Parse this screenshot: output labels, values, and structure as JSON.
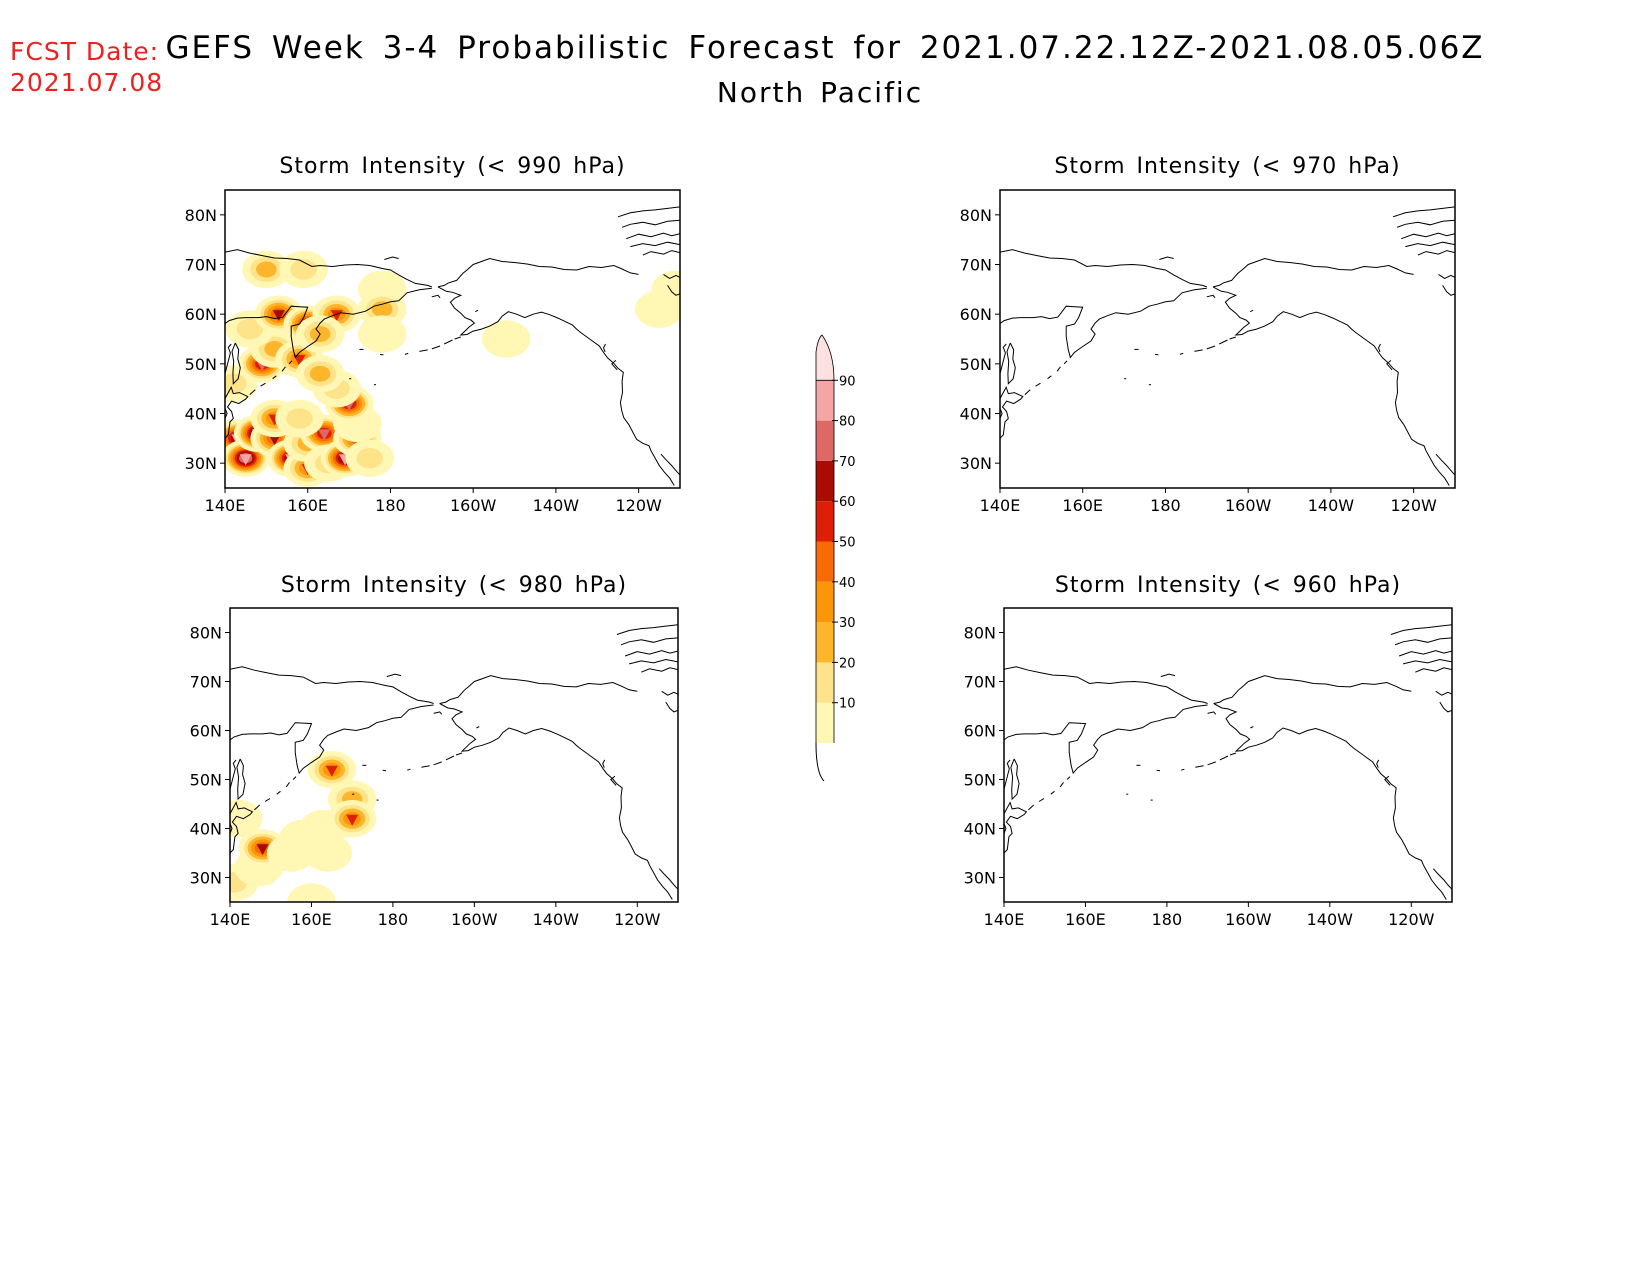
{
  "header": {
    "fcst_label": "FCST Date:",
    "fcst_date": "2021.07.08",
    "title": "GEFS Week 3-4 Probabilistic Forecast for 2021.07.22.12Z-2021.08.05.06Z",
    "subtitle": "North Pacific"
  },
  "panels": [
    {
      "title": "Storm Intensity (< 990 hPa)"
    },
    {
      "title": "Storm Intensity (< 970 hPa)"
    },
    {
      "title": "Storm Intensity (< 980 hPa)"
    },
    {
      "title": "Storm Intensity (< 960 hPa)"
    }
  ],
  "axes": {
    "lat_ticks": [
      "80N",
      "70N",
      "60N",
      "50N",
      "40N",
      "30N"
    ],
    "lon_ticks": [
      "140E",
      "160E",
      "180",
      "160W",
      "140W",
      "120W"
    ]
  },
  "colorbar": {
    "levels": [
      "10",
      "20",
      "30",
      "40",
      "50",
      "60",
      "70",
      "80",
      "90"
    ],
    "colors": [
      "#fff7b3",
      "#fde38a",
      "#fdb52b",
      "#fb9608",
      "#f76b06",
      "#de1f05",
      "#a90d02",
      "#de6866",
      "#f4a5a5",
      "#fde0e0"
    ]
  },
  "map_data": {
    "type": "probability-contour-map",
    "region": "North Pacific",
    "lon_range": "140E-110W",
    "lat_range": "25N-85N",
    "panels": [
      {
        "threshold": "< 990 hPa",
        "probability_cells": [
          {
            "lon": 140,
            "lat": 34,
            "p": 55
          },
          {
            "lon": 143,
            "lat": 35,
            "p": 75
          },
          {
            "lon": 145,
            "lat": 31,
            "p": 85
          },
          {
            "lon": 148,
            "lat": 36,
            "p": 85
          },
          {
            "lon": 152,
            "lat": 35,
            "p": 55
          },
          {
            "lon": 156,
            "lat": 31,
            "p": 75
          },
          {
            "lon": 160,
            "lat": 29,
            "p": 45
          },
          {
            "lon": 160,
            "lat": 34,
            "p": 35
          },
          {
            "lon": 164,
            "lat": 36,
            "p": 65
          },
          {
            "lon": 165,
            "lat": 30,
            "p": 25
          },
          {
            "lon": 169,
            "lat": 31,
            "p": 75
          },
          {
            "lon": 172,
            "lat": 35,
            "p": 55
          },
          {
            "lon": 172,
            "lat": 38,
            "p": 15
          },
          {
            "lon": 175,
            "lat": 31,
            "p": 25
          },
          {
            "lon": 152,
            "lat": 39,
            "p": 45
          },
          {
            "lon": 158,
            "lat": 39,
            "p": 25
          },
          {
            "lon": 170,
            "lat": 42,
            "p": 65
          },
          {
            "lon": 167,
            "lat": 45,
            "p": 25
          },
          {
            "lon": 142,
            "lat": 46,
            "p": 25
          },
          {
            "lon": 149,
            "lat": 50,
            "p": 65
          },
          {
            "lon": 152,
            "lat": 53,
            "p": 35
          },
          {
            "lon": 158,
            "lat": 51,
            "p": 45
          },
          {
            "lon": 163,
            "lat": 48,
            "p": 35
          },
          {
            "lon": 146,
            "lat": 57,
            "p": 25
          },
          {
            "lon": 153,
            "lat": 60,
            "p": 55
          },
          {
            "lon": 160,
            "lat": 58,
            "p": 65
          },
          {
            "lon": 167,
            "lat": 60,
            "p": 45
          },
          {
            "lon": 163,
            "lat": 56,
            "p": 35
          },
          {
            "lon": 150,
            "lat": 69,
            "p": 35
          },
          {
            "lon": 159,
            "lat": 69,
            "p": 25
          },
          {
            "lon": 178,
            "lat": 65,
            "p": 15
          },
          {
            "lon": 178,
            "lat": 61,
            "p": 35
          },
          {
            "lon": 178,
            "lat": 56,
            "p": 15
          },
          {
            "lon": 208,
            "lat": 55,
            "p": 15
          },
          {
            "lon": 245,
            "lat": 61,
            "p": 15
          },
          {
            "lon": 249,
            "lat": 65,
            "p": 15
          }
        ]
      },
      {
        "threshold": "< 970 hPa",
        "probability_cells": []
      },
      {
        "threshold": "< 980 hPa",
        "probability_cells": [
          {
            "lon": 141,
            "lat": 29,
            "p": 25
          },
          {
            "lon": 147,
            "lat": 32,
            "p": 15
          },
          {
            "lon": 148,
            "lat": 36,
            "p": 55
          },
          {
            "lon": 155,
            "lat": 35,
            "p": 15
          },
          {
            "lon": 158,
            "lat": 38,
            "p": 15
          },
          {
            "lon": 163,
            "lat": 40,
            "p": 15
          },
          {
            "lon": 164,
            "lat": 35,
            "p": 15
          },
          {
            "lon": 165,
            "lat": 52,
            "p": 45
          },
          {
            "lon": 170,
            "lat": 46,
            "p": 35
          },
          {
            "lon": 170,
            "lat": 42,
            "p": 45
          },
          {
            "lon": 160,
            "lat": 25,
            "p": 15
          },
          {
            "lon": 142,
            "lat": 42,
            "p": 15
          }
        ]
      },
      {
        "threshold": "< 960 hPa",
        "probability_cells": []
      }
    ]
  }
}
